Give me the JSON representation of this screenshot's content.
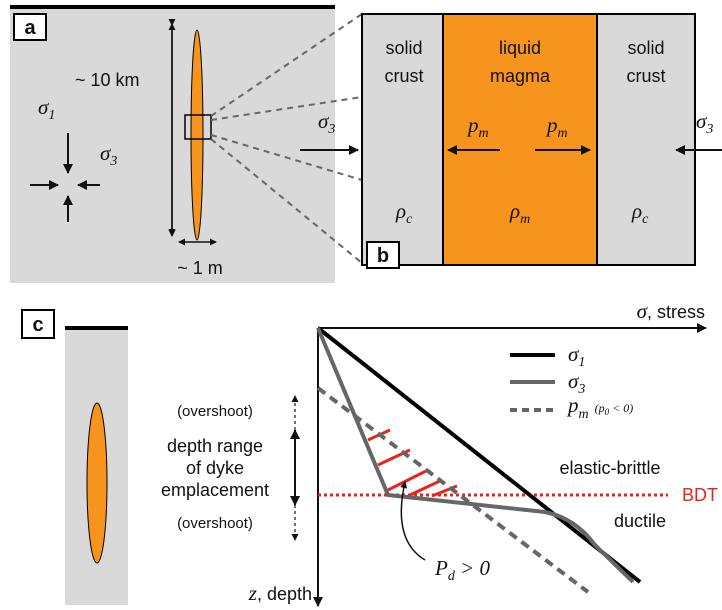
{
  "panel_a": {
    "label": "a",
    "length": "~ 10 km",
    "width": "~ 1 m",
    "sigma1": {
      "symbol": "σ",
      "sub": "1"
    },
    "sigma3": {
      "symbol": "σ",
      "sub": "3"
    }
  },
  "panel_b": {
    "label": "b",
    "left_layer": [
      "solid",
      "crust"
    ],
    "middle_layer": [
      "liquid",
      "magma"
    ],
    "right_layer": [
      "solid",
      "crust"
    ],
    "sigma3_left": {
      "symbol": "σ",
      "sub": "3"
    },
    "sigma3_right": {
      "symbol": "σ",
      "sub": "3"
    },
    "pm_left": {
      "symbol": "p",
      "sub": "m"
    },
    "pm_right": {
      "symbol": "p",
      "sub": "m"
    },
    "rho_left": {
      "symbol": "ρ",
      "sub": "c"
    },
    "rho_middle": {
      "symbol": "ρ",
      "sub": "m"
    },
    "rho_right": {
      "symbol": "ρ",
      "sub": "c"
    }
  },
  "panel_c": {
    "label": "c",
    "x_axis": {
      "symbol": "σ",
      "rest": ", stress"
    },
    "y_axis": {
      "symbol": "z",
      "rest": ", depth"
    },
    "legend": [
      {
        "symbol": "σ",
        "sub": "1"
      },
      {
        "symbol": "σ",
        "sub": "3"
      },
      {
        "symbol": "p",
        "sub": "m",
        "note": "(p",
        "note_sub": "0",
        "note_rest": " < 0)"
      }
    ],
    "overshoot_top": "(overshoot)",
    "depth_range": [
      "depth range",
      "of dyke",
      "emplacement"
    ],
    "overshoot_bottom": "(overshoot)",
    "upper_zone": "elastic-brittle",
    "transition": "BDT",
    "lower_zone": "ductile",
    "pressure": {
      "symbol": "P",
      "sub": "d",
      "rest": " > 0"
    }
  }
}
